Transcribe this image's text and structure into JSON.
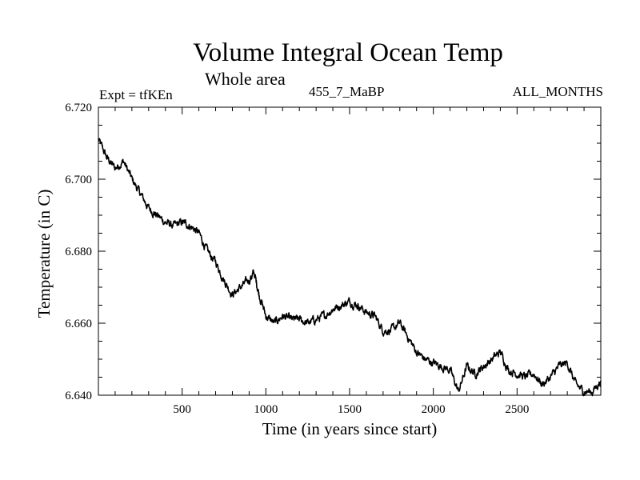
{
  "chart_data": {
    "type": "line",
    "title": "Volume Integral Ocean Temp",
    "subtitle": "Whole area",
    "header_left": "Expt = tfKEn",
    "header_center": "455_7_MaBP",
    "header_right": "ALL_MONTHS",
    "xlabel": "Time (in years since start)",
    "ylabel": "Temperature (in C)",
    "xlim": [
      0,
      3000
    ],
    "ylim": [
      0.64,
      0.72
    ],
    "y_offset": 6.0,
    "xticks": [
      500,
      1000,
      1500,
      2000,
      2500
    ],
    "xtick_labels": [
      "500",
      "1000",
      "1500",
      "2000",
      "2500"
    ],
    "yticks": [
      6.64,
      6.66,
      6.68,
      6.7,
      6.72
    ],
    "ytick_labels": [
      "6.640",
      "6.660",
      "6.680",
      "6.700",
      "6.720"
    ],
    "grid": false,
    "series": [
      {
        "color": "#000000",
        "x": [
          0,
          50,
          100,
          150,
          200,
          250,
          300,
          350,
          400,
          450,
          500,
          550,
          600,
          650,
          700,
          750,
          800,
          850,
          900,
          930,
          960,
          1000,
          1050,
          1100,
          1150,
          1200,
          1250,
          1300,
          1350,
          1400,
          1450,
          1500,
          1550,
          1600,
          1650,
          1700,
          1750,
          1800,
          1850,
          1900,
          1950,
          2000,
          2050,
          2100,
          2150,
          2200,
          2250,
          2300,
          2350,
          2400,
          2450,
          2500,
          2550,
          2600,
          2650,
          2700,
          2750,
          2800,
          2850,
          2900,
          2950,
          3000
        ],
        "y": [
          6.711,
          6.706,
          6.703,
          6.705,
          6.7,
          6.696,
          6.692,
          6.69,
          6.688,
          6.687,
          6.688,
          6.687,
          6.685,
          6.68,
          6.677,
          6.672,
          6.668,
          6.67,
          6.672,
          6.674,
          6.668,
          6.662,
          6.66,
          6.662,
          6.661,
          6.661,
          6.66,
          6.661,
          6.662,
          6.664,
          6.665,
          6.666,
          6.665,
          6.663,
          6.662,
          6.658,
          6.658,
          6.66,
          6.656,
          6.652,
          6.65,
          6.649,
          6.648,
          6.647,
          6.641,
          6.648,
          6.646,
          6.648,
          6.65,
          6.652,
          6.647,
          6.646,
          6.645,
          6.646,
          6.643,
          6.645,
          6.648,
          6.649,
          6.643,
          6.641,
          6.641,
          6.644
        ]
      }
    ]
  }
}
